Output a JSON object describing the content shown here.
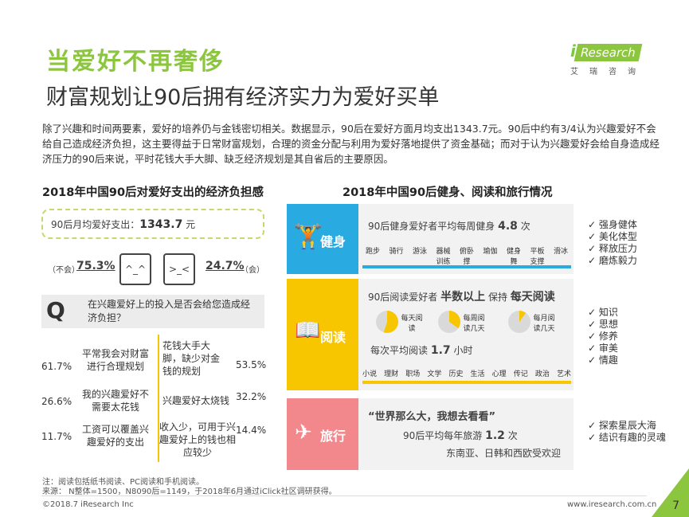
{
  "header": {
    "title": "当爱好不再奢侈",
    "subtitle": "财富规划让90后拥有经济实力为爱好买单"
  },
  "logo": {
    "brand_i": "i",
    "brand_rest": "Research",
    "brand_cn": "艾瑞咨询"
  },
  "paragraph": "除了兴趣和时间两要素，爱好的培养仍与金钱密切相关。数据显示，90后在爱好方面月均支出1343.7元。90后中约有3/4认为兴趣爱好不会给自己造成经济负担，这主要得益于日常财富规划，合理的资金分配与利用为爱好落地提供了资金基础；而对于认为兴趣爱好会给自身造成经济压力的90后来说，平时花钱大手大脚、缺乏经济规划是其自省后的主要原因。",
  "left": {
    "heading": "2018年中国90后对爱好支出的经济负担感",
    "spend_label": "90后月均爱好支出：",
    "spend_value": "1343.7",
    "spend_unit": "元",
    "no_label": "（不会）",
    "no_pct": "75.3%",
    "yes_pct": "24.7%",
    "yes_label": "（会）",
    "q_mark": "Q",
    "q_text": "在兴趣爱好上的投入是否会给您造成经济负担？",
    "no_reasons": [
      {
        "pct": "61.7%",
        "text": "平常我会对财富进行合理规划"
      },
      {
        "pct": "26.6%",
        "text": "我的兴趣爱好不需要太花钱"
      },
      {
        "pct": "11.7%",
        "text": "工资可以覆盖兴趣爱好的支出"
      }
    ],
    "yes_reasons": [
      {
        "pct": "53.5%",
        "text": "花钱大手大脚，缺少对金钱的规划"
      },
      {
        "pct": "32.2%",
        "text": "兴趣爱好太烧钱"
      },
      {
        "pct": "14.4%",
        "text": "收入少，可用于兴趣爱好上的钱也相应较少"
      }
    ]
  },
  "right": {
    "heading": "2018年中国90后健身、阅读和旅行情况",
    "fitness": {
      "label": "健身",
      "line_pre": "90后健身爱好者平均每周健身",
      "line_value": "4.8",
      "line_unit": "次",
      "activities": [
        "跑步",
        "骑行",
        "游泳",
        "器械训练",
        "俯卧撑",
        "瑜伽",
        "健身舞",
        "平板支撑",
        "滑冰"
      ],
      "benefits": [
        "强身健体",
        "美化体型",
        "释放压力",
        "磨炼毅力"
      ]
    },
    "reading": {
      "label": "阅读",
      "line_pre": "90后阅读爱好者",
      "line_bold1": "半数以上",
      "line_mid": "保持",
      "line_bold2": "每天阅读",
      "pies": [
        "每天阅读",
        "每周阅读几天",
        "每月阅读几天"
      ],
      "avg_pre": "每次平均阅读",
      "avg_value": "1.7",
      "avg_unit": "小时",
      "genres": [
        "小说",
        "理财",
        "职场",
        "文学",
        "历史",
        "生活",
        "心理",
        "传记",
        "政治",
        "艺术"
      ],
      "benefits": [
        "知识",
        "思想",
        "修养",
        "审美",
        "情趣"
      ]
    },
    "travel": {
      "label": "旅行",
      "quote": "“世界那么大，我想去看看”",
      "line_pre": "90后平均每年旅游",
      "line_value": "1.2",
      "line_unit": "次",
      "dest": "东南亚、日韩和西欧受欢迎",
      "benefits": [
        "探索星辰大海",
        "结识有趣的灵魂"
      ]
    }
  },
  "footer": {
    "note": "注：阅读包括纸书阅读、PC阅读和手机阅读。",
    "source": "来源： N整体=1500，N8090后=1149，于2018年6月通过iClick社区调研获得。",
    "copyright": "©2018.7 iResearch Inc",
    "url": "www.iresearch.com.cn",
    "page": "7"
  },
  "colors": {
    "title_green": "#8cc63f",
    "fitness_blue": "#29abe2",
    "reading_yellow": "#f7c600",
    "travel_pink": "#f2888c"
  }
}
